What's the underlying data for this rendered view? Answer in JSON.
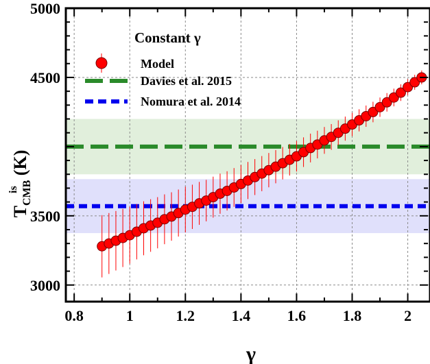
{
  "chart_data": {
    "type": "scatter",
    "xlabel": "γ",
    "ylabel_main": "T",
    "ylabel_sup": "is",
    "ylabel_sub": "CMB",
    "ylabel_unit": " (K)",
    "xlim": [
      0.77,
      2.08
    ],
    "ylim": [
      2880,
      5000
    ],
    "xticks": [
      0.8,
      1,
      1.2,
      1.4,
      1.6,
      1.8,
      2
    ],
    "xtick_labels": [
      "0.8",
      "1",
      "1.2",
      "1.4",
      "1.6",
      "1.8",
      "2"
    ],
    "yticks": [
      3000,
      3500,
      4500,
      5000
    ],
    "ytick_labels": [
      "3000",
      "3500",
      "4500",
      "5000"
    ],
    "grid": true,
    "legend_title": "Constant γ",
    "legend_position": "top-left",
    "series": [
      {
        "name": "Model",
        "kind": "points-with-errorbars",
        "color": "#ff0000",
        "x": [
          0.9,
          0.925,
          0.95,
          0.975,
          1.0,
          1.025,
          1.05,
          1.075,
          1.1,
          1.125,
          1.15,
          1.175,
          1.2,
          1.225,
          1.25,
          1.275,
          1.3,
          1.325,
          1.35,
          1.375,
          1.4,
          1.425,
          1.45,
          1.475,
          1.5,
          1.525,
          1.55,
          1.575,
          1.6,
          1.625,
          1.65,
          1.675,
          1.7,
          1.725,
          1.75,
          1.775,
          1.8,
          1.825,
          1.85,
          1.875,
          1.9,
          1.925,
          1.95,
          1.975,
          2.0,
          2.025,
          2.05
        ],
        "y": [
          3280,
          3300,
          3320,
          3340,
          3360,
          3385,
          3410,
          3430,
          3450,
          3475,
          3495,
          3520,
          3545,
          3565,
          3590,
          3610,
          3635,
          3660,
          3680,
          3705,
          3730,
          3755,
          3780,
          3805,
          3830,
          3855,
          3880,
          3905,
          3930,
          3960,
          3990,
          4015,
          4045,
          4070,
          4100,
          4130,
          4160,
          4190,
          4220,
          4250,
          4285,
          4320,
          4355,
          4390,
          4430,
          4465,
          4500
        ],
        "err": [
          225,
          220,
          215,
          210,
          205,
          200,
          195,
          190,
          185,
          180,
          175,
          170,
          165,
          160,
          155,
          150,
          148,
          145,
          142,
          140,
          137,
          134,
          130,
          127,
          124,
          120,
          117,
          114,
          110,
          107,
          104,
          100,
          97,
          93,
          90,
          87,
          84,
          80,
          77,
          74,
          70,
          67,
          64,
          60,
          57,
          54,
          50
        ]
      },
      {
        "name": "Davies et al. 2015",
        "kind": "hline-with-band",
        "value": 4000,
        "band": [
          3800,
          4200
        ],
        "color": "#2a8a2a",
        "band_color": "#e1efdc"
      },
      {
        "name": "Nomura et al. 2014",
        "kind": "hline-with-band",
        "value": 3570,
        "band": [
          3375,
          3765
        ],
        "color": "#0000ee",
        "band_color": "#e0e0fb"
      }
    ]
  }
}
